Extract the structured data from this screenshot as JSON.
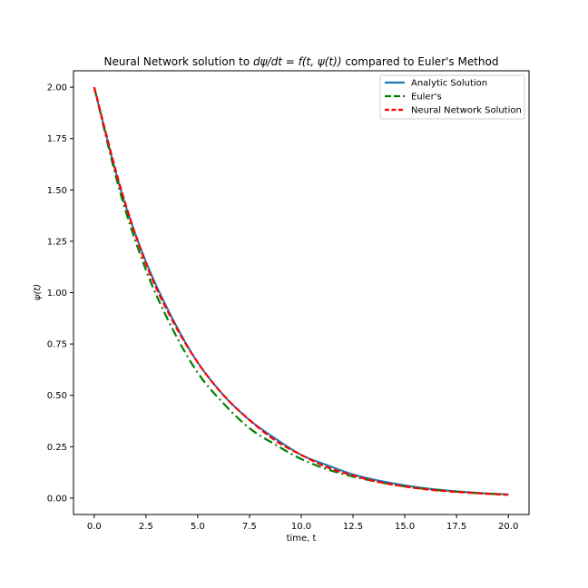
{
  "chart_data": {
    "type": "line",
    "title": "Neural Network solution to dψ/dt = f(t, ψ(t)) compared to Euler's Method",
    "title_parts": {
      "prefix": "Neural Network solution to ",
      "math": "dψ/dt = f(t, ψ(t))",
      "suffix": " compared to Euler's Method"
    },
    "xlabel": "time, t",
    "ylabel": "ψ(t)",
    "xlim": [
      -1.0,
      21.0
    ],
    "ylim": [
      -0.08,
      2.08
    ],
    "xticks": [
      0.0,
      2.5,
      5.0,
      7.5,
      10.0,
      12.5,
      15.0,
      17.5,
      20.0
    ],
    "xtick_labels": [
      "0.0",
      "2.5",
      "5.0",
      "7.5",
      "10.0",
      "12.5",
      "15.0",
      "17.5",
      "20.0"
    ],
    "yticks": [
      0.0,
      0.25,
      0.5,
      0.75,
      1.0,
      1.25,
      1.5,
      1.75,
      2.0
    ],
    "ytick_labels": [
      "0.00",
      "0.25",
      "0.50",
      "0.75",
      "1.00",
      "1.25",
      "1.50",
      "1.75",
      "2.00"
    ],
    "grid": false,
    "legend_position": "top-right",
    "series": [
      {
        "name": "Analytic Solution",
        "color": "#1f77b4",
        "style": "solid",
        "x": [
          0.0,
          1.25,
          2.5,
          3.75,
          5.0,
          6.25,
          7.5,
          8.75,
          10.0,
          11.25,
          12.5,
          13.75,
          15.0,
          16.25,
          17.5,
          18.75,
          20.0
        ],
        "y": [
          2.0,
          1.51,
          1.15,
          0.88,
          0.66,
          0.5,
          0.38,
          0.29,
          0.21,
          0.16,
          0.115,
          0.085,
          0.062,
          0.045,
          0.033,
          0.024,
          0.018
        ]
      },
      {
        "name": "Euler's",
        "color": "#008000",
        "style": "dashdot",
        "x": [
          0.0,
          1.25,
          2.5,
          3.75,
          5.0,
          6.25,
          7.5,
          8.75,
          10.0,
          11.25,
          12.5,
          13.75,
          15.0,
          16.25,
          17.5,
          18.75,
          20.0
        ],
        "y": [
          2.0,
          1.49,
          1.11,
          0.83,
          0.61,
          0.46,
          0.34,
          0.26,
          0.19,
          0.14,
          0.105,
          0.078,
          0.057,
          0.042,
          0.031,
          0.023,
          0.016
        ]
      },
      {
        "name": "Neural Network Solution",
        "color": "#ff0000",
        "style": "dashed",
        "x": [
          0.0,
          1.25,
          2.5,
          3.75,
          5.0,
          6.25,
          7.5,
          8.75,
          10.0,
          11.25,
          12.5,
          13.75,
          15.0,
          16.25,
          17.5,
          18.75,
          20.0
        ],
        "y": [
          2.0,
          1.52,
          1.14,
          0.87,
          0.66,
          0.5,
          0.38,
          0.28,
          0.21,
          0.15,
          0.11,
          0.078,
          0.056,
          0.04,
          0.03,
          0.022,
          0.016
        ]
      }
    ]
  }
}
